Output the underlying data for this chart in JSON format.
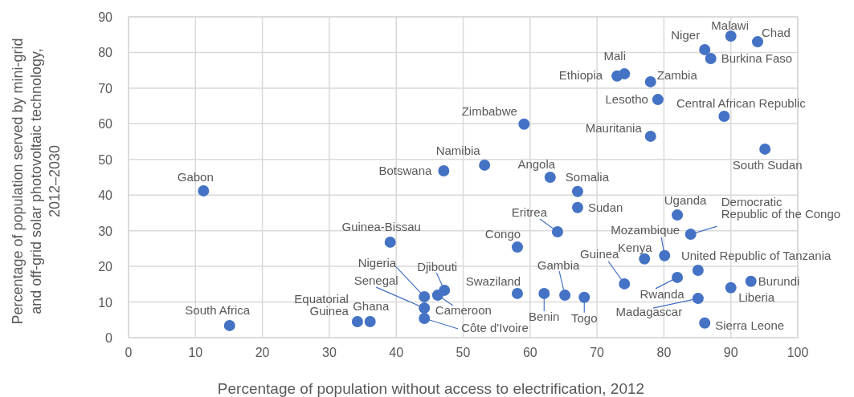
{
  "chart_data": {
    "type": "scatter",
    "xlabel": "Percentage of population without access to electrification, 2012",
    "ylabel": "Percentage of population served by mini-grid and off-grid solar photovoltaic technology, 2012–2030",
    "xlim": [
      0,
      100
    ],
    "ylim": [
      0,
      90
    ],
    "xticks": [
      0,
      10,
      20,
      30,
      40,
      50,
      60,
      70,
      80,
      90,
      100
    ],
    "yticks": [
      0,
      10,
      20,
      30,
      40,
      50,
      60,
      70,
      80,
      90
    ],
    "grid": true,
    "marker": "circle",
    "series": [
      {
        "color": "#4472c4",
        "x": [
          11.2,
          15.1,
          34.2,
          36.1,
          39.1,
          44.2,
          44.2,
          44.2,
          46.2,
          47.2,
          47.1,
          53.2,
          59.1,
          63.0,
          67.1,
          67.1,
          64.1,
          58.1,
          58.1,
          62.1,
          65.2,
          68.1,
          74.1,
          77.1,
          80.1,
          82.0,
          84.0,
          82.0,
          85.1,
          85.1,
          86.1,
          90.0,
          93.0,
          73.0,
          74.1,
          78.0,
          79.1,
          78.0,
          89.0,
          95.1,
          86.1,
          87.0,
          90.0,
          94.0
        ],
        "values": [
          41.2,
          3.4,
          4.5,
          4.5,
          26.8,
          11.5,
          8.3,
          5.4,
          11.9,
          13.3,
          46.8,
          48.4,
          59.9,
          45.0,
          41.0,
          36.5,
          29.7,
          25.4,
          12.4,
          12.4,
          11.9,
          11.3,
          15.1,
          22.1,
          23.0,
          34.4,
          29.0,
          16.9,
          18.9,
          11.0,
          4.1,
          14.0,
          15.8,
          73.4,
          74.0,
          71.8,
          66.8,
          56.5,
          62.1,
          52.9,
          80.8,
          78.3,
          84.6,
          83.0
        ]
      }
    ],
    "annotations": [
      {
        "text": "Gabon",
        "x": 11.2,
        "y": 41.2
      },
      {
        "text": "South Africa",
        "x": 15.1,
        "y": 3.4
      },
      {
        "text": "Equatorial Guinea",
        "x": 34.2,
        "y": 4.5
      },
      {
        "text": "Ghana",
        "x": 36.1,
        "y": 4.5
      },
      {
        "text": "Guinea-Bissau",
        "x": 39.1,
        "y": 26.8
      },
      {
        "text": "Nigeria",
        "x": 44.2,
        "y": 11.5
      },
      {
        "text": "Senegal",
        "x": 44.2,
        "y": 8.3
      },
      {
        "text": "Côte d'Ivoire",
        "x": 44.2,
        "y": 5.4
      },
      {
        "text": "Cameroon",
        "x": 46.2,
        "y": 11.9
      },
      {
        "text": "Djibouti",
        "x": 47.2,
        "y": 13.3
      },
      {
        "text": "Botswana",
        "x": 47.1,
        "y": 46.8
      },
      {
        "text": "Namibia",
        "x": 53.2,
        "y": 48.4
      },
      {
        "text": "Zimbabwe",
        "x": 59.1,
        "y": 59.9
      },
      {
        "text": "Angola",
        "x": 63.0,
        "y": 45.0
      },
      {
        "text": "Somalia",
        "x": 67.1,
        "y": 41.0
      },
      {
        "text": "Sudan",
        "x": 67.1,
        "y": 36.5
      },
      {
        "text": "Eritrea",
        "x": 64.1,
        "y": 29.7
      },
      {
        "text": "Congo",
        "x": 58.1,
        "y": 25.4
      },
      {
        "text": "Swaziland",
        "x": 58.1,
        "y": 12.4
      },
      {
        "text": "Benin",
        "x": 62.1,
        "y": 12.4
      },
      {
        "text": "Gambia",
        "x": 65.2,
        "y": 11.9
      },
      {
        "text": "Togo",
        "x": 68.1,
        "y": 11.3
      },
      {
        "text": "Guinea",
        "x": 74.1,
        "y": 15.1
      },
      {
        "text": "Kenya",
        "x": 77.1,
        "y": 22.1
      },
      {
        "text": "Mozambique",
        "x": 80.1,
        "y": 23.0
      },
      {
        "text": "Uganda",
        "x": 82.0,
        "y": 34.4
      },
      {
        "text": "Democratic Republic of the Congo",
        "x": 84.0,
        "y": 29.0
      },
      {
        "text": "Rwanda",
        "x": 82.0,
        "y": 16.9
      },
      {
        "text": "United Republic of Tanzania",
        "x": 85.1,
        "y": 18.9
      },
      {
        "text": "Madagascar",
        "x": 85.1,
        "y": 11.0
      },
      {
        "text": "Sierra Leone",
        "x": 86.1,
        "y": 4.1
      },
      {
        "text": "Liberia",
        "x": 90.0,
        "y": 14.0
      },
      {
        "text": "Burundi",
        "x": 93.0,
        "y": 15.8
      },
      {
        "text": "Ethiopia",
        "x": 73.0,
        "y": 73.4
      },
      {
        "text": "Mali",
        "x": 74.1,
        "y": 74.0
      },
      {
        "text": "Zambia",
        "x": 78.0,
        "y": 71.8
      },
      {
        "text": "Lesotho",
        "x": 79.1,
        "y": 66.8
      },
      {
        "text": "Mauritania",
        "x": 78.0,
        "y": 56.5
      },
      {
        "text": "Central African Republic",
        "x": 89.0,
        "y": 62.1
      },
      {
        "text": "South Sudan",
        "x": 95.1,
        "y": 52.9
      },
      {
        "text": "Niger",
        "x": 86.1,
        "y": 80.8
      },
      {
        "text": "Burkina Faso",
        "x": 87.0,
        "y": 78.3
      },
      {
        "text": "Malawi",
        "x": 90.0,
        "y": 84.6
      },
      {
        "text": "Chad",
        "x": 94.0,
        "y": 83.0
      }
    ]
  }
}
